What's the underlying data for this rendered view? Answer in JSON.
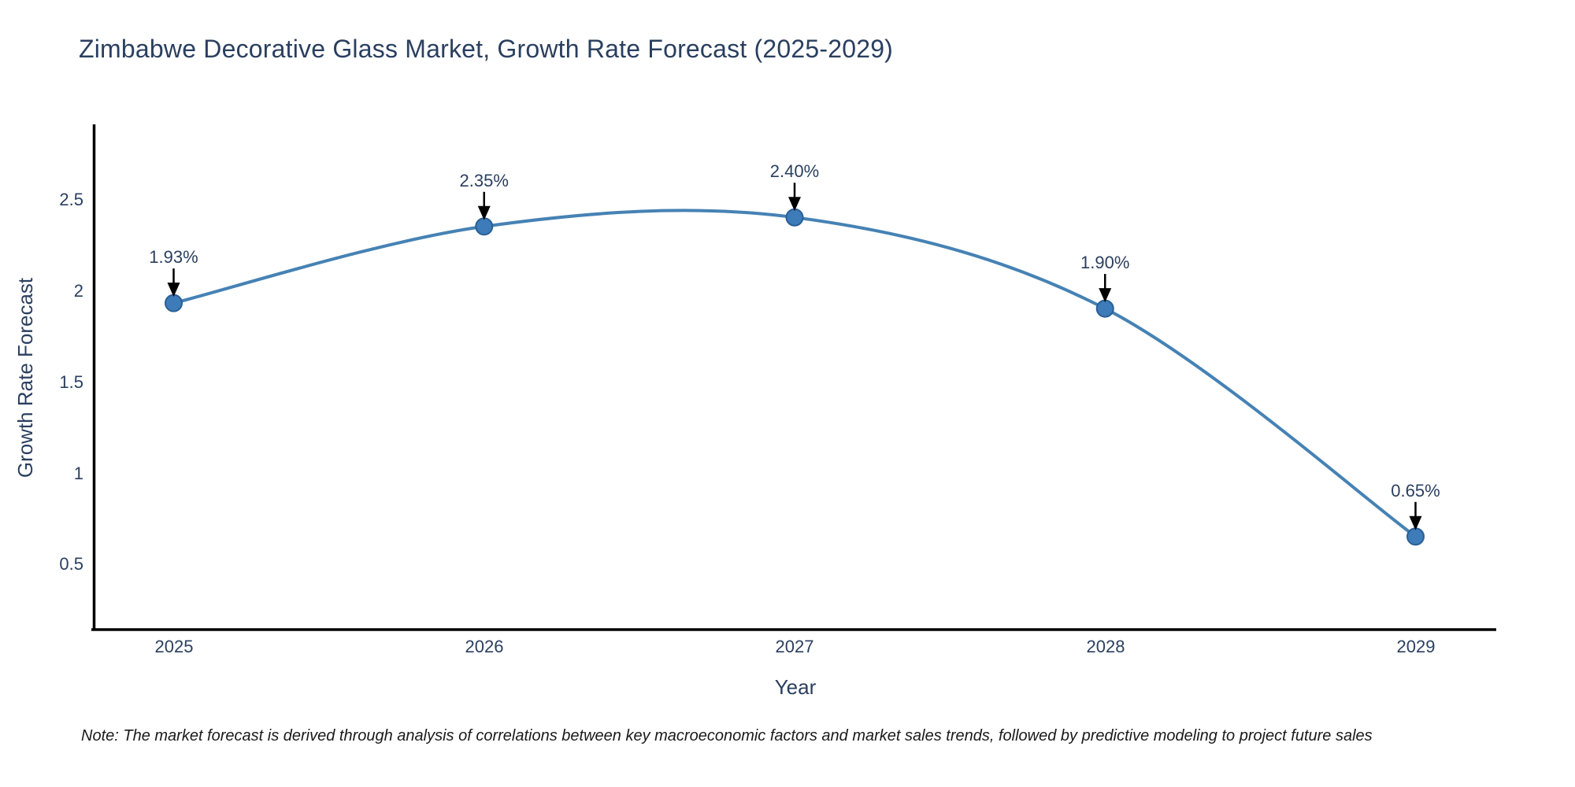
{
  "title": "Zimbabwe Decorative Glass Market, Growth Rate Forecast (2025-2029)",
  "footnote": "Note: The market forecast is derived through analysis of correlations between key macroeconomic factors and market sales trends, followed by predictive modeling to project future sales",
  "chart_data": {
    "type": "line",
    "curve": "spline",
    "title": "Zimbabwe Decorative Glass Market, Growth Rate Forecast (2025-2029)",
    "xlabel": "Year",
    "ylabel": "Growth Rate Forecast",
    "x": [
      2025,
      2026,
      2027,
      2028,
      2029
    ],
    "categories": [
      "2025",
      "2026",
      "2027",
      "2028",
      "2029"
    ],
    "values": [
      1.93,
      2.35,
      2.4,
      1.9,
      0.65
    ],
    "point_labels": [
      "1.93%",
      "2.35%",
      "2.40%",
      "1.90%",
      "0.65%"
    ],
    "ytick_labels": [
      "0.5",
      "1",
      "1.5",
      "2",
      "2.5"
    ],
    "yticks": [
      0.5,
      1,
      1.5,
      2,
      2.5
    ],
    "xlim": [
      2024.74,
      2029.26
    ],
    "ylim": [
      0.14,
      2.91
    ],
    "grid": false,
    "legend": "none",
    "line_color": "#4682b4",
    "marker_color": "#3d7cb8",
    "marker_edge_color": "#2a5f96",
    "axis_color": "#000000",
    "arrow_color": "#000000",
    "text_color": "#2a3f5f"
  }
}
